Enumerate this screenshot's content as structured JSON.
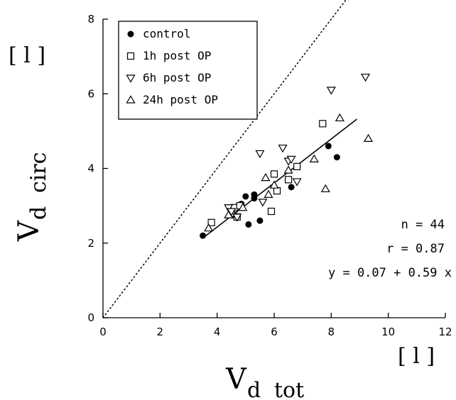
{
  "chart_data": {
    "type": "scatter",
    "xlabel": {
      "main": "V",
      "sub": "d",
      "rest": "tot"
    },
    "ylabel": {
      "main": "V",
      "sub": "d",
      "rest": "circ"
    },
    "x_unit": "[ l ]",
    "y_unit": "[ l ]",
    "xlim": [
      0,
      12
    ],
    "ylim": [
      0,
      8
    ],
    "x_ticks": [
      "0",
      "2",
      "4",
      "6",
      "8",
      "10",
      "12"
    ],
    "y_ticks": [
      "0",
      "2",
      "4",
      "6",
      "8"
    ],
    "legend_position": "top-left",
    "series": [
      {
        "name": "control",
        "marker": "filled-circle",
        "points": [
          [
            3.5,
            2.2
          ],
          [
            4.6,
            2.75
          ],
          [
            4.85,
            3.05
          ],
          [
            5.0,
            3.25
          ],
          [
            5.3,
            3.3
          ],
          [
            5.3,
            3.2
          ],
          [
            5.1,
            2.5
          ],
          [
            5.5,
            2.6
          ],
          [
            6.6,
            3.5
          ],
          [
            7.9,
            4.6
          ],
          [
            8.2,
            4.3
          ]
        ]
      },
      {
        "name": "1h post OP",
        "marker": "open-square",
        "points": [
          [
            3.8,
            2.55
          ],
          [
            4.5,
            2.8
          ],
          [
            4.6,
            2.95
          ],
          [
            4.7,
            2.7
          ],
          [
            4.8,
            3.0
          ],
          [
            5.9,
            2.85
          ],
          [
            6.0,
            3.85
          ],
          [
            6.1,
            3.4
          ],
          [
            6.5,
            3.7
          ],
          [
            6.8,
            4.05
          ],
          [
            7.7,
            5.2
          ]
        ]
      },
      {
        "name": "6h post OP",
        "marker": "open-triangle-down",
        "points": [
          [
            4.4,
            2.95
          ],
          [
            4.7,
            2.7
          ],
          [
            5.5,
            4.4
          ],
          [
            6.3,
            4.55
          ],
          [
            6.5,
            4.2
          ],
          [
            6.8,
            3.65
          ],
          [
            8.0,
            6.1
          ],
          [
            9.2,
            6.45
          ],
          [
            5.6,
            3.1
          ],
          [
            6.6,
            4.25
          ],
          [
            4.5,
            2.85
          ]
        ]
      },
      {
        "name": "24h post OP",
        "marker": "open-triangle-up",
        "points": [
          [
            3.7,
            2.4
          ],
          [
            4.4,
            2.75
          ],
          [
            5.8,
            3.3
          ],
          [
            5.7,
            3.75
          ],
          [
            6.5,
            3.95
          ],
          [
            7.4,
            4.25
          ],
          [
            7.8,
            3.45
          ],
          [
            8.3,
            5.35
          ],
          [
            9.3,
            4.8
          ],
          [
            6.0,
            3.55
          ],
          [
            4.9,
            2.95
          ]
        ]
      }
    ],
    "regression_line": {
      "x": [
        3.5,
        8.9
      ],
      "intercept": 0.07,
      "slope": 0.59,
      "style": "solid"
    },
    "identity_line": {
      "x": [
        0,
        12
      ],
      "style": "dotted"
    },
    "annotations": [
      "n = 44",
      "r = 0.87",
      "y = 0.07 + 0.59 x"
    ]
  }
}
